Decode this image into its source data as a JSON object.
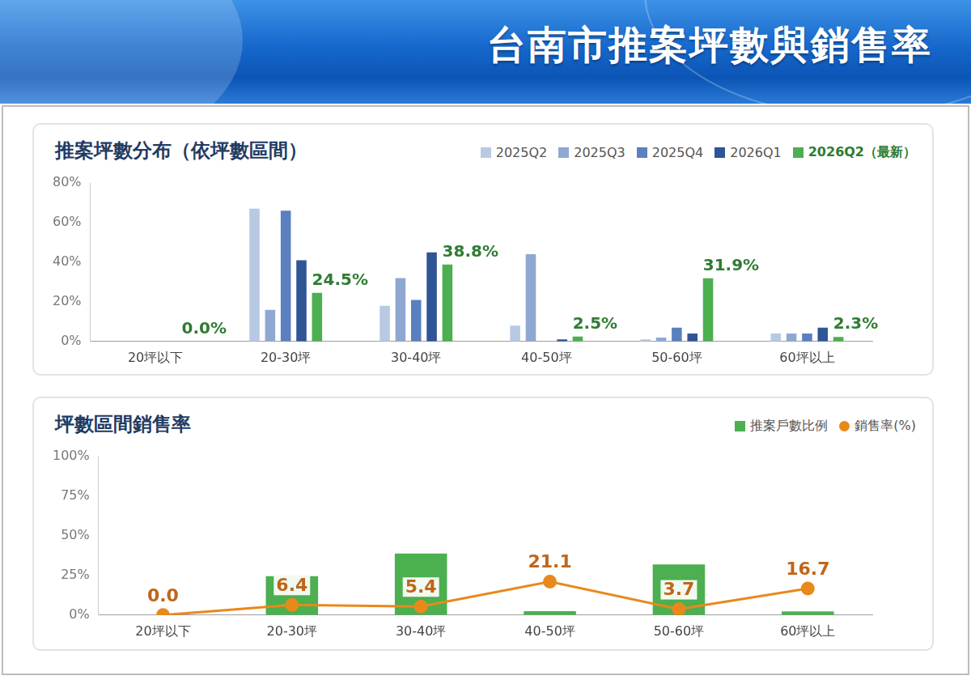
{
  "header": {
    "title": "台南市推案坪數與銷售率"
  },
  "chart_data": [
    {
      "type": "bar",
      "title": "推案坪數分布（依坪數區間）",
      "categories": [
        "20坪以下",
        "20-30坪",
        "30-40坪",
        "40-50坪",
        "50-60坪",
        "60坪以上"
      ],
      "series": [
        {
          "name": "2025Q2",
          "color": "#b8c9e4",
          "values": [
            0,
            67,
            18,
            8,
            1,
            4
          ]
        },
        {
          "name": "2025Q3",
          "color": "#8fa8d2",
          "values": [
            0,
            16,
            32,
            44,
            2,
            4
          ]
        },
        {
          "name": "2025Q4",
          "color": "#5b80bf",
          "values": [
            0,
            66,
            21,
            0,
            7,
            4
          ]
        },
        {
          "name": "2026Q1",
          "color": "#2f5597",
          "values": [
            0,
            41,
            45,
            1,
            4,
            7
          ]
        },
        {
          "name": "2026Q2（最新）",
          "color": "#4caf50",
          "values": [
            0,
            24.5,
            38.8,
            2.5,
            31.9,
            2.3
          ],
          "data_labels": true,
          "value_labels": [
            "0.0%",
            "24.5%",
            "38.8%",
            "2.5%",
            "31.9%",
            "2.3%"
          ]
        }
      ],
      "ylim": [
        0,
        80
      ],
      "yticks": [
        {
          "value": 0,
          "label": "0%"
        },
        {
          "value": 20,
          "label": "20%"
        },
        {
          "value": 40,
          "label": "40%"
        },
        {
          "value": 60,
          "label": "60%"
        },
        {
          "value": 80,
          "label": "80%"
        }
      ],
      "grid": false,
      "legend": "upper right"
    },
    {
      "type": "bar",
      "title": "坪數區間銷售率",
      "categories": [
        "20坪以下",
        "20-30坪",
        "30-40坪",
        "40-50坪",
        "50-60坪",
        "60坪以上"
      ],
      "series": [
        {
          "name": "推案戶數比例",
          "type": "bar",
          "color": "#4caf50",
          "values": [
            0,
            24.5,
            38.8,
            2.5,
            31.9,
            2.3
          ]
        },
        {
          "name": "銷售率(%)",
          "type": "line",
          "color": "#e8891c",
          "marker": "circle",
          "values": [
            0,
            6.4,
            5.4,
            21.1,
            3.7,
            16.7
          ],
          "data_labels": true,
          "value_labels": [
            "0.0",
            "6.4",
            "5.4",
            "21.1",
            "3.7",
            "16.7"
          ]
        }
      ],
      "ylim": [
        0,
        100
      ],
      "yticks": [
        {
          "value": 0,
          "label": "0%"
        },
        {
          "value": 25,
          "label": "25%"
        },
        {
          "value": 50,
          "label": "50%"
        },
        {
          "value": 75,
          "label": "75%"
        },
        {
          "value": 100,
          "label": "100%"
        }
      ],
      "grid": false,
      "legend": "upper right"
    }
  ]
}
